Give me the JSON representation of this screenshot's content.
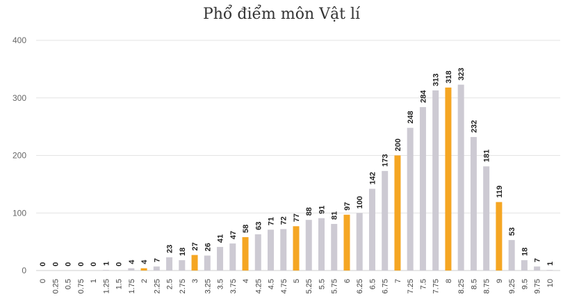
{
  "chart_data": {
    "type": "bar",
    "title": "Phổ điểm môn Vật lí",
    "xlabel": "",
    "ylabel": "",
    "ylim": [
      0,
      400
    ],
    "yticks": [
      0,
      100,
      200,
      300,
      400
    ],
    "categories": [
      "0",
      "0.25",
      "0.5",
      "0.75",
      "1",
      "1.25",
      "1.5",
      "1.75",
      "2",
      "2.25",
      "2.5",
      "2.75",
      "3",
      "3.25",
      "3.5",
      "3.75",
      "4",
      "4.25",
      "4.5",
      "4.75",
      "5",
      "5.25",
      "5.5",
      "5.75",
      "6",
      "6.25",
      "6.5",
      "6.75",
      "7",
      "7.25",
      "7.5",
      "7.75",
      "8",
      "8.25",
      "8.5",
      "8.75",
      "9",
      "9.25",
      "9.5",
      "9.75",
      "10"
    ],
    "values": [
      0,
      0,
      0,
      0,
      0,
      1,
      0,
      4,
      4,
      7,
      23,
      18,
      27,
      26,
      41,
      47,
      58,
      63,
      71,
      72,
      77,
      88,
      91,
      81,
      97,
      100,
      142,
      173,
      200,
      248,
      284,
      313,
      318,
      323,
      232,
      181,
      119,
      53,
      18,
      7,
      1
    ],
    "highlighted": [
      "2",
      "3",
      "4",
      "5",
      "6",
      "7",
      "8",
      "9"
    ],
    "colors": {
      "normal": "#cdcad3",
      "highlight": "#f5a623",
      "grid": "#e3e3e3"
    }
  }
}
